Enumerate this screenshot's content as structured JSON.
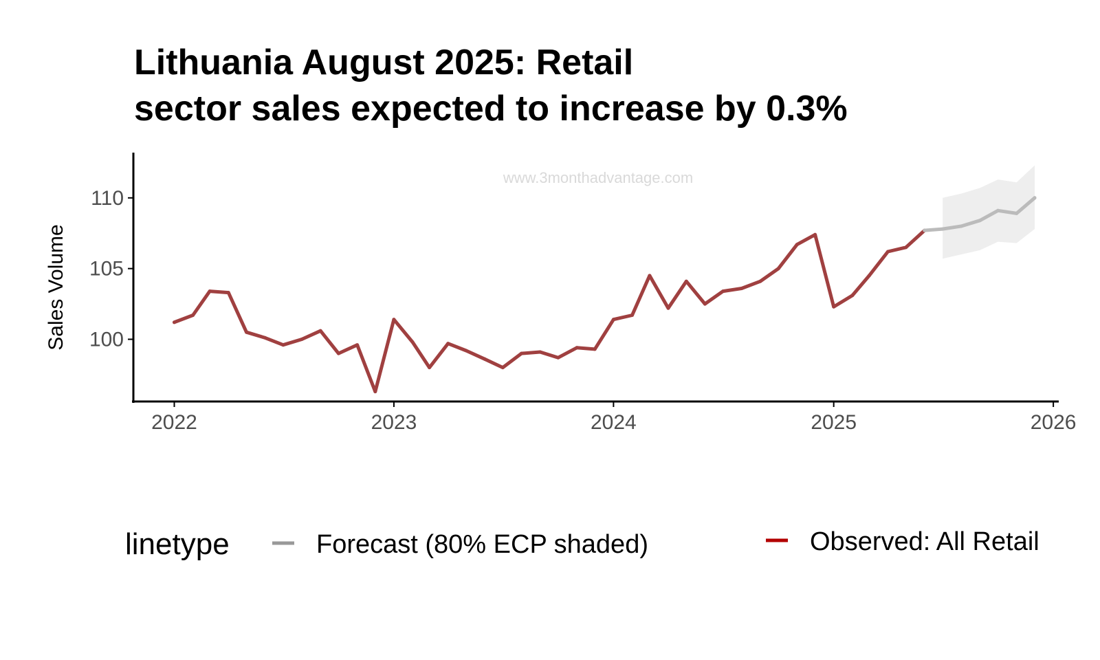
{
  "chart_data": {
    "type": "line",
    "title_lines": [
      "Lithuania August 2025: Retail",
      "sector sales expected to increase by 0.3%"
    ],
    "xlabel": "",
    "ylabel": "Sales Volume",
    "xlim": [
      "2021-10-25",
      "2026-01-10"
    ],
    "ylim": [
      95.6,
      113.2
    ],
    "x_ticks": [
      "2022-01-01",
      "2023-01-01",
      "2024-01-01",
      "2025-01-01",
      "2026-01-01"
    ],
    "x_tick_labels": [
      "2022",
      "2023",
      "2024",
      "2025",
      "2026"
    ],
    "y_ticks": [
      100,
      105,
      110
    ],
    "y_tick_labels": [
      "100",
      "105",
      "110"
    ],
    "watermark": "www.3monthadvantage.com",
    "legend": {
      "title": "linetype",
      "position": "bottom",
      "entries": [
        {
          "label": "Forecast (80% ECP shaded)",
          "color": "#999999"
        },
        {
          "label": "Observed: All Retail",
          "color": "#b30000"
        }
      ]
    },
    "series": [
      {
        "name": "Observed: All Retail",
        "color": "#a04040",
        "x": [
          "2022-01-01",
          "2022-02-01",
          "2022-03-01",
          "2022-04-01",
          "2022-05-01",
          "2022-06-01",
          "2022-07-01",
          "2022-08-01",
          "2022-09-01",
          "2022-10-01",
          "2022-11-01",
          "2022-12-01",
          "2023-01-01",
          "2023-02-01",
          "2023-03-01",
          "2023-04-01",
          "2023-05-01",
          "2023-06-01",
          "2023-07-01",
          "2023-08-01",
          "2023-09-01",
          "2023-10-01",
          "2023-11-01",
          "2023-12-01",
          "2024-01-01",
          "2024-02-01",
          "2024-03-01",
          "2024-04-01",
          "2024-05-01",
          "2024-06-01",
          "2024-07-01",
          "2024-08-01",
          "2024-09-01",
          "2024-10-01",
          "2024-11-01",
          "2024-12-01",
          "2025-01-01",
          "2025-02-01",
          "2025-03-01",
          "2025-04-01",
          "2025-05-01",
          "2025-06-01"
        ],
        "values": [
          101.2,
          101.7,
          103.4,
          103.3,
          100.5,
          100.1,
          99.6,
          100.0,
          100.6,
          99.0,
          99.6,
          96.3,
          101.4,
          99.8,
          98.0,
          99.7,
          99.2,
          98.6,
          98.0,
          99.0,
          99.1,
          98.7,
          99.4,
          99.3,
          101.4,
          101.7,
          104.5,
          102.2,
          104.1,
          102.5,
          103.4,
          103.6,
          104.1,
          105.0,
          106.7,
          107.4,
          102.3,
          103.1,
          104.5,
          106.2,
          106.5,
          107.7
        ]
      },
      {
        "name": "Forecast (80% ECP shaded)",
        "color": "#bbbbbb",
        "x": [
          "2025-06-01",
          "2025-07-01",
          "2025-08-01",
          "2025-09-01",
          "2025-10-01",
          "2025-11-01",
          "2025-12-01"
        ],
        "values": [
          107.7,
          107.8,
          108.0,
          108.4,
          109.1,
          108.9,
          110.0
        ],
        "lower": [
          107.7,
          105.7,
          106.0,
          106.3,
          106.9,
          106.8,
          107.8
        ],
        "upper": [
          107.7,
          110.0,
          110.3,
          110.7,
          111.3,
          111.1,
          112.3
        ]
      }
    ]
  }
}
